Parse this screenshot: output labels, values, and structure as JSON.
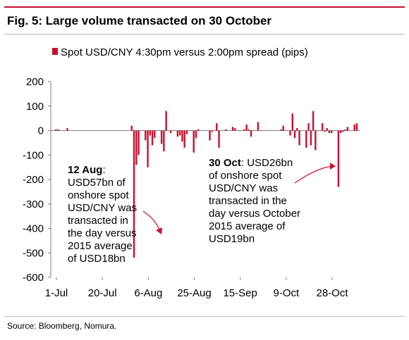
{
  "figure": {
    "title": "Fig. 5: Large volume transacted on 30 October",
    "source": "Source: Bloomberg, Nomura."
  },
  "colors": {
    "series": "#c8102e",
    "rule": "#c8102e",
    "axis": "#7f7f7f"
  },
  "chart_data": {
    "type": "bar",
    "title": "",
    "xlabel": "",
    "ylabel": "",
    "ylim": [
      -600,
      200
    ],
    "yticks": [
      "200",
      "100",
      "0",
      "-100",
      "-200",
      "-300",
      "-400",
      "-500",
      "-600"
    ],
    "xticks": [
      "1-Jul",
      "20-Jul",
      "6-Aug",
      "25-Aug",
      "15-Sep",
      "9-Oct",
      "28-Oct"
    ],
    "grid": false,
    "legend": {
      "position": "top-left",
      "entries": [
        "Spot USD/CNY 4:30pm versus 2:00pm spread (pips)"
      ]
    },
    "series": [
      {
        "name": "Spot USD/CNY 4:30pm versus 2:00pm spread (pips)",
        "x": [
          "2015-07-01",
          "2015-07-02",
          "2015-07-03",
          "2015-07-06",
          "2015-07-07",
          "2015-07-08",
          "2015-07-09",
          "2015-07-10",
          "2015-07-13",
          "2015-07-14",
          "2015-07-15",
          "2015-07-16",
          "2015-07-17",
          "2015-07-20",
          "2015-07-21",
          "2015-07-22",
          "2015-07-23",
          "2015-07-24",
          "2015-07-27",
          "2015-07-28",
          "2015-07-29",
          "2015-07-30",
          "2015-07-31",
          "2015-08-03",
          "2015-08-04",
          "2015-08-05",
          "2015-08-06",
          "2015-08-07",
          "2015-08-10",
          "2015-08-11",
          "2015-08-12",
          "2015-08-13",
          "2015-08-14",
          "2015-08-17",
          "2015-08-18",
          "2015-08-19",
          "2015-08-20",
          "2015-08-21",
          "2015-08-24",
          "2015-08-25",
          "2015-08-26",
          "2015-08-27",
          "2015-08-28",
          "2015-08-31",
          "2015-09-01",
          "2015-09-02",
          "2015-09-07",
          "2015-09-08",
          "2015-09-09",
          "2015-09-10",
          "2015-09-11",
          "2015-09-14",
          "2015-09-15",
          "2015-09-16",
          "2015-09-17",
          "2015-09-18",
          "2015-09-21",
          "2015-09-22",
          "2015-09-23",
          "2015-09-24",
          "2015-09-25",
          "2015-09-28",
          "2015-09-29",
          "2015-09-30",
          "2015-10-08",
          "2015-10-09",
          "2015-10-12",
          "2015-10-13",
          "2015-10-14",
          "2015-10-15",
          "2015-10-16",
          "2015-10-19",
          "2015-10-20",
          "2015-10-21",
          "2015-10-22",
          "2015-10-23",
          "2015-10-26",
          "2015-10-27",
          "2015-10-28",
          "2015-10-29",
          "2015-10-30",
          "2015-11-02",
          "2015-11-03",
          "2015-11-04",
          "2015-11-05",
          "2015-11-06",
          "2015-11-09",
          "2015-11-10"
        ],
        "values": [
          0,
          5,
          5,
          0,
          10,
          0,
          0,
          0,
          0,
          0,
          0,
          0,
          0,
          0,
          0,
          0,
          0,
          0,
          0,
          0,
          0,
          0,
          0,
          0,
          20,
          -520,
          -140,
          -100,
          -40,
          -150,
          -20,
          -60,
          -30,
          -55,
          -85,
          80,
          0,
          -10,
          -25,
          -20,
          -45,
          -70,
          -15,
          -90,
          -30,
          5,
          -40,
          -5,
          0,
          30,
          -70,
          5,
          0,
          0,
          15,
          10,
          0,
          5,
          25,
          5,
          -25,
          35,
          0,
          0,
          5,
          20,
          -20,
          70,
          -30,
          10,
          -60,
          -70,
          30,
          -60,
          80,
          -80,
          30,
          -5,
          10,
          -10,
          -10,
          -230,
          -10,
          -5,
          5,
          15,
          25,
          30
        ]
      }
    ],
    "annotations": [
      {
        "bold": "12 Aug",
        "lines": [
          ":",
          "USD57bn of",
          "onshore spot",
          "USD/CNY was",
          "transacted in",
          "the day versus",
          "2015 average",
          "of USD18bn"
        ]
      },
      {
        "bold": "30 Oct",
        "lines": [
          ": USD26bn",
          "of onshore spot",
          "USD/CNY was",
          "transacted in the",
          "day versus October",
          "2015 average of",
          "USD19bn"
        ]
      }
    ]
  }
}
